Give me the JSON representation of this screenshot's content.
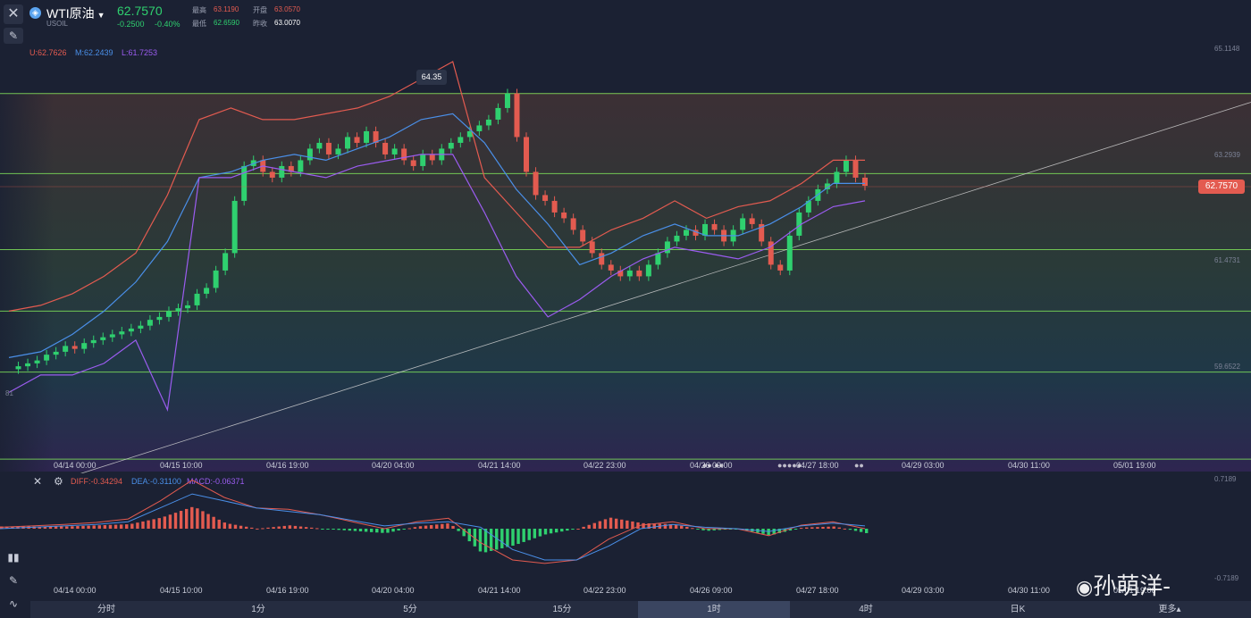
{
  "header": {
    "symbol": "WTI原油",
    "symbol_code": "USOIL",
    "price": "62.7570",
    "change": "-0.2500",
    "change_pct": "-0.40%",
    "high_label": "最高",
    "high": "63.1190",
    "open_label": "开盘",
    "open": "63.0570",
    "low_label": "最低",
    "low": "62.6590",
    "prev_label": "昨收",
    "prev": "63.0070"
  },
  "boll_legend": {
    "u": "U:62.7626",
    "m": "M:62.2439",
    "l": "L:61.7253"
  },
  "macd_legend": {
    "diff": "DIFF:-0.34294",
    "dea": "DEA:-0.31100",
    "macd": "MACD:-0.06371"
  },
  "annotations": {
    "peak_label": "64.35",
    "last_price_tag": "62.7570",
    "left_edge_label": "81"
  },
  "tabs": [
    {
      "label": "分时"
    },
    {
      "label": "1分"
    },
    {
      "label": "5分"
    },
    {
      "label": "15分"
    },
    {
      "label": "1时"
    },
    {
      "label": "4时"
    },
    {
      "label": "日K"
    },
    {
      "label": "更多▴"
    }
  ],
  "active_tab": "1时",
  "watermark": "孙萌洋-",
  "colors": {
    "up": "#2fd06f",
    "down": "#e35b50",
    "boll_upper": "#e35b50",
    "boll_mid": "#4a8fe8",
    "boll_lower": "#9b5cf0",
    "grid_line": "#7ee05a"
  },
  "chart_data": {
    "type": "candlestick",
    "title": "WTI原油",
    "ylim": [
      57.7,
      65.7
    ],
    "y_ticks": [
      65.1148,
      63.2939,
      61.4731,
      59.6522
    ],
    "y_tick_labels": [
      "65.1148",
      "63.2939",
      "61.4731",
      "59.6522"
    ],
    "x_tick_labels": [
      "04/14 00:00",
      "04/15 10:00",
      "04/16 19:00",
      "04/20 04:00",
      "04/21 14:00",
      "04/22 23:00",
      "04/26 09:00",
      "04/27 18:00",
      "04/29 03:00",
      "04/30 11:00",
      "05/01 19:00"
    ],
    "horizontal_levels": [
      64.35,
      62.97,
      61.66,
      60.6,
      59.55,
      58.05
    ],
    "trendline": {
      "from": [
        "04/14 03:00",
        57.8
      ],
      "to": [
        "05/01 19:00",
        64.2
      ]
    },
    "close_series": [
      59.6,
      59.65,
      59.7,
      59.75,
      59.85,
      59.9,
      60.0,
      59.95,
      60.05,
      60.1,
      60.15,
      60.2,
      60.25,
      60.3,
      60.35,
      60.45,
      60.5,
      60.6,
      60.65,
      60.7,
      60.9,
      61.0,
      61.3,
      61.6,
      62.5,
      63.1,
      63.2,
      63.0,
      62.9,
      63.1,
      63.0,
      63.2,
      63.4,
      63.5,
      63.3,
      63.4,
      63.6,
      63.5,
      63.7,
      63.5,
      63.3,
      63.4,
      63.2,
      63.1,
      63.3,
      63.2,
      63.4,
      63.5,
      63.6,
      63.7,
      63.8,
      63.9,
      64.1,
      64.35,
      63.6,
      63.0,
      62.6,
      62.5,
      62.3,
      62.2,
      62.0,
      61.8,
      61.6,
      61.4,
      61.3,
      61.2,
      61.3,
      61.2,
      61.4,
      61.6,
      61.8,
      61.9,
      62.0,
      61.9,
      62.1,
      62.0,
      61.8,
      62.0,
      62.2,
      62.1,
      61.8,
      61.4,
      61.3,
      61.9,
      62.3,
      62.5,
      62.7,
      62.8,
      63.0,
      63.2,
      62.9,
      62.76
    ],
    "boll": {
      "upper": [
        60.6,
        60.7,
        60.9,
        61.2,
        61.6,
        62.6,
        63.9,
        64.1,
        63.9,
        63.9,
        64.0,
        64.1,
        64.3,
        64.6,
        64.9,
        62.9,
        62.3,
        61.7,
        61.7,
        62.0,
        62.2,
        62.5,
        62.2,
        62.4,
        62.5,
        62.8,
        63.2,
        63.2
      ],
      "mid": [
        59.8,
        59.9,
        60.2,
        60.6,
        61.1,
        61.8,
        62.9,
        63.0,
        63.2,
        63.3,
        63.2,
        63.4,
        63.6,
        63.9,
        64.0,
        63.5,
        62.7,
        62.1,
        61.4,
        61.6,
        61.9,
        62.1,
        61.9,
        61.9,
        62.1,
        62.4,
        62.8,
        62.8
      ],
      "lower": [
        59.2,
        59.5,
        59.5,
        59.7,
        60.1,
        58.9,
        62.9,
        62.9,
        63.1,
        63.0,
        62.9,
        63.1,
        63.2,
        63.3,
        63.3,
        62.3,
        61.2,
        60.5,
        60.8,
        61.2,
        61.5,
        61.7,
        61.6,
        61.5,
        61.7,
        62.1,
        62.4,
        62.5
      ]
    },
    "macd": {
      "ylim": [
        -0.72,
        0.72
      ],
      "y_tick_labels": [
        "0.7189",
        "-0.7189"
      ],
      "diff": [
        0.02,
        0.04,
        0.06,
        0.09,
        0.14,
        0.4,
        0.7,
        0.45,
        0.3,
        0.28,
        0.2,
        0.1,
        0.0,
        0.1,
        0.15,
        -0.2,
        -0.45,
        -0.5,
        -0.45,
        -0.15,
        0.05,
        0.1,
        0.0,
        0.0,
        -0.1,
        0.05,
        0.1,
        0.0
      ],
      "dea": [
        0.0,
        0.02,
        0.04,
        0.06,
        0.1,
        0.3,
        0.5,
        0.4,
        0.3,
        0.25,
        0.2,
        0.12,
        0.04,
        0.08,
        0.1,
        0.02,
        -0.3,
        -0.45,
        -0.45,
        -0.25,
        0.0,
        0.06,
        0.02,
        0.0,
        -0.04,
        0.04,
        0.08,
        0.04
      ]
    }
  }
}
